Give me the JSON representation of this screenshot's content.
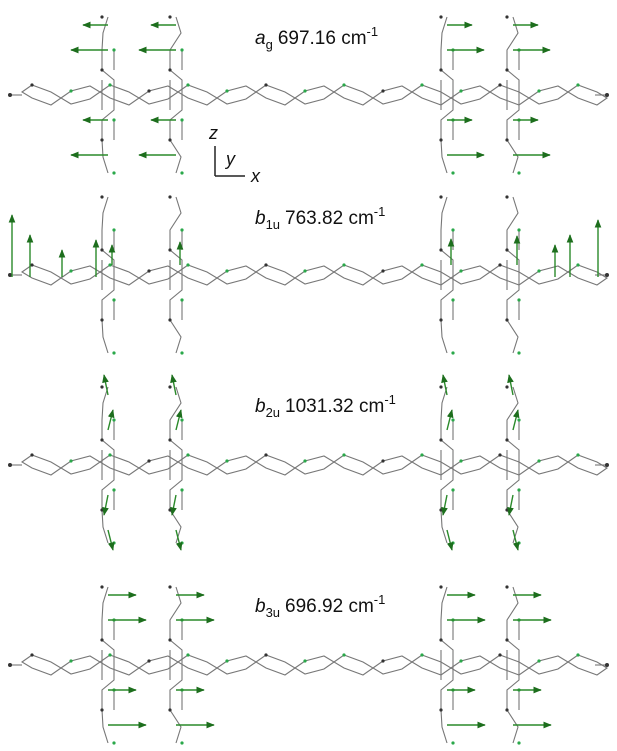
{
  "axes": {
    "z": "z",
    "y": "y",
    "x": "x"
  },
  "panels": [
    {
      "symmetry": "a",
      "subscript": "g",
      "frequency": "697.16 cm",
      "superscript": "-1"
    },
    {
      "symmetry": "b",
      "subscript": "1u",
      "frequency": "763.82 cm",
      "superscript": "-1"
    },
    {
      "symmetry": "b",
      "subscript": "2u",
      "frequency": "1031.32 cm",
      "superscript": "-1"
    },
    {
      "symmetry": "b",
      "subscript": "3u",
      "frequency": "696.92 cm",
      "superscript": "-1"
    }
  ]
}
